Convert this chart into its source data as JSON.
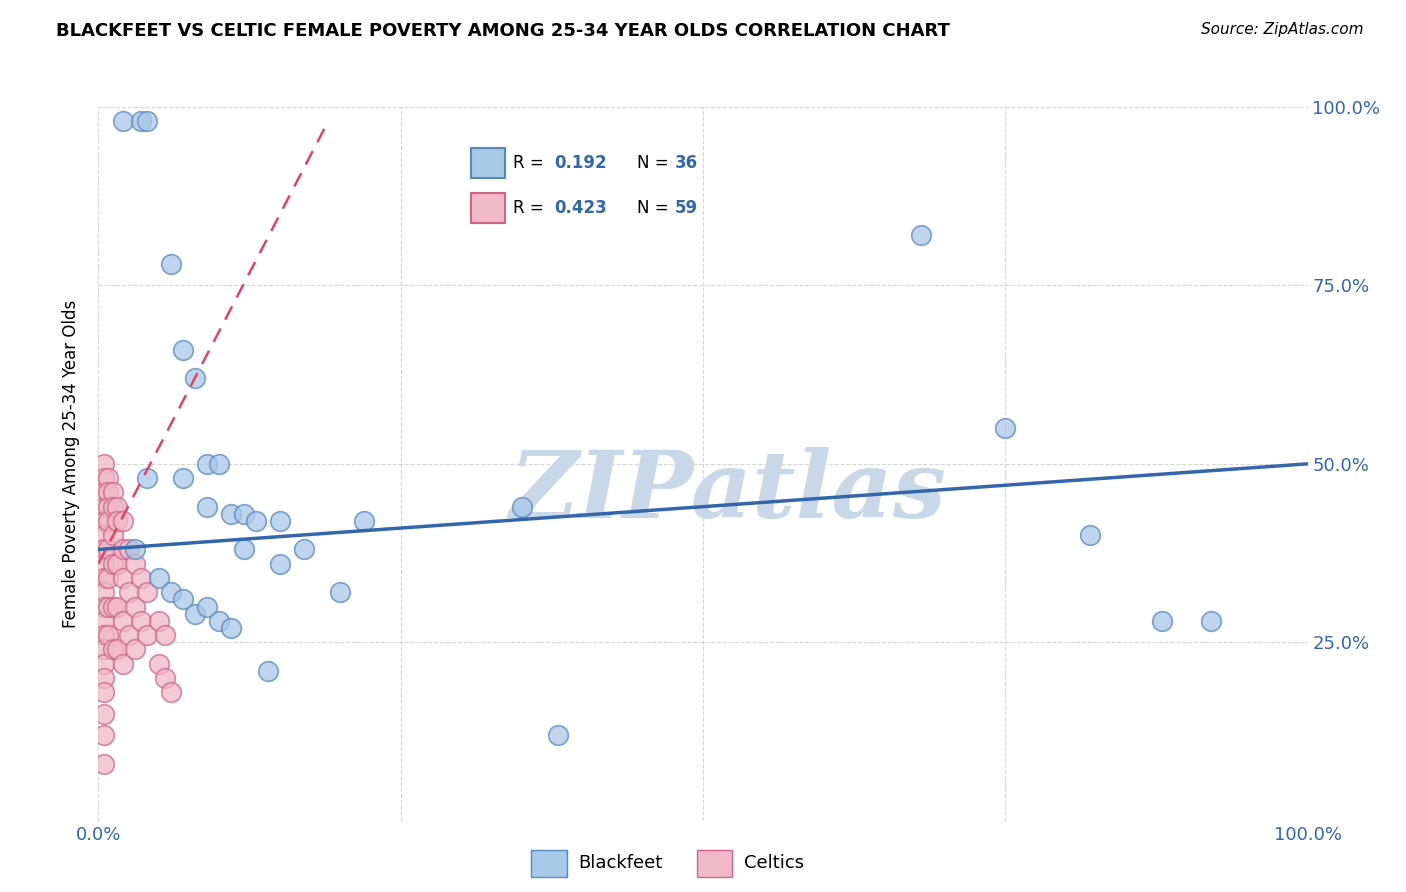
{
  "title": "BLACKFEET VS CELTIC FEMALE POVERTY AMONG 25-34 YEAR OLDS CORRELATION CHART",
  "source": "Source: ZipAtlas.com",
  "ylabel": "Female Poverty Among 25-34 Year Olds",
  "xlim": [
    0,
    1
  ],
  "ylim": [
    0,
    1
  ],
  "blackfeet_color": "#a8c8e8",
  "blackfeet_edge": "#5588bb",
  "celtics_color": "#f0b8c8",
  "celtics_edge": "#cc6688",
  "blue_line_color": "#3366aa",
  "pink_line_color": "#dd4466",
  "R_blackfeet": 0.192,
  "N_blackfeet": 36,
  "R_celtics": 0.423,
  "N_celtics": 59,
  "blue_text_color": "#3366aa",
  "background_color": "#ffffff",
  "grid_color": "#cccccc",
  "watermark": "ZIPatlas",
  "watermark_color": "#c8d8e8",
  "blackfeet_x": [
    0.02,
    0.035,
    0.04,
    0.06,
    0.07,
    0.08,
    0.09,
    0.1,
    0.11,
    0.12,
    0.13,
    0.15,
    0.17,
    0.2,
    0.22,
    0.35,
    0.38,
    0.03,
    0.05,
    0.06,
    0.07,
    0.08,
    0.09,
    0.1,
    0.11,
    0.14,
    0.04,
    0.07,
    0.09,
    0.12,
    0.15,
    0.68,
    0.75,
    0.82,
    0.88,
    0.92
  ],
  "blackfeet_y": [
    0.98,
    0.98,
    0.98,
    0.78,
    0.66,
    0.62,
    0.5,
    0.5,
    0.43,
    0.43,
    0.42,
    0.42,
    0.38,
    0.32,
    0.42,
    0.44,
    0.12,
    0.38,
    0.34,
    0.32,
    0.31,
    0.29,
    0.3,
    0.28,
    0.27,
    0.21,
    0.48,
    0.48,
    0.44,
    0.38,
    0.36,
    0.82,
    0.55,
    0.4,
    0.28,
    0.28
  ],
  "celtics_x": [
    0.005,
    0.005,
    0.005,
    0.005,
    0.005,
    0.005,
    0.005,
    0.005,
    0.005,
    0.005,
    0.005,
    0.005,
    0.005,
    0.005,
    0.005,
    0.005,
    0.005,
    0.005,
    0.005,
    0.005,
    0.008,
    0.008,
    0.008,
    0.008,
    0.008,
    0.008,
    0.008,
    0.008,
    0.012,
    0.012,
    0.012,
    0.012,
    0.012,
    0.012,
    0.015,
    0.015,
    0.015,
    0.015,
    0.015,
    0.02,
    0.02,
    0.02,
    0.02,
    0.02,
    0.025,
    0.025,
    0.025,
    0.03,
    0.03,
    0.03,
    0.035,
    0.035,
    0.04,
    0.04,
    0.05,
    0.05,
    0.055,
    0.055,
    0.06
  ],
  "celtics_y": [
    0.5,
    0.48,
    0.46,
    0.44,
    0.42,
    0.4,
    0.38,
    0.36,
    0.34,
    0.32,
    0.3,
    0.28,
    0.26,
    0.24,
    0.22,
    0.2,
    0.18,
    0.15,
    0.12,
    0.08,
    0.48,
    0.46,
    0.44,
    0.42,
    0.38,
    0.34,
    0.3,
    0.26,
    0.46,
    0.44,
    0.4,
    0.36,
    0.3,
    0.24,
    0.44,
    0.42,
    0.36,
    0.3,
    0.24,
    0.42,
    0.38,
    0.34,
    0.28,
    0.22,
    0.38,
    0.32,
    0.26,
    0.36,
    0.3,
    0.24,
    0.34,
    0.28,
    0.32,
    0.26,
    0.28,
    0.22,
    0.26,
    0.2,
    0.18
  ],
  "blue_line_x": [
    0.0,
    1.0
  ],
  "blue_line_y": [
    0.38,
    0.5
  ],
  "pink_line_x": [
    0.0,
    0.19
  ],
  "pink_line_y": [
    0.36,
    0.98
  ]
}
